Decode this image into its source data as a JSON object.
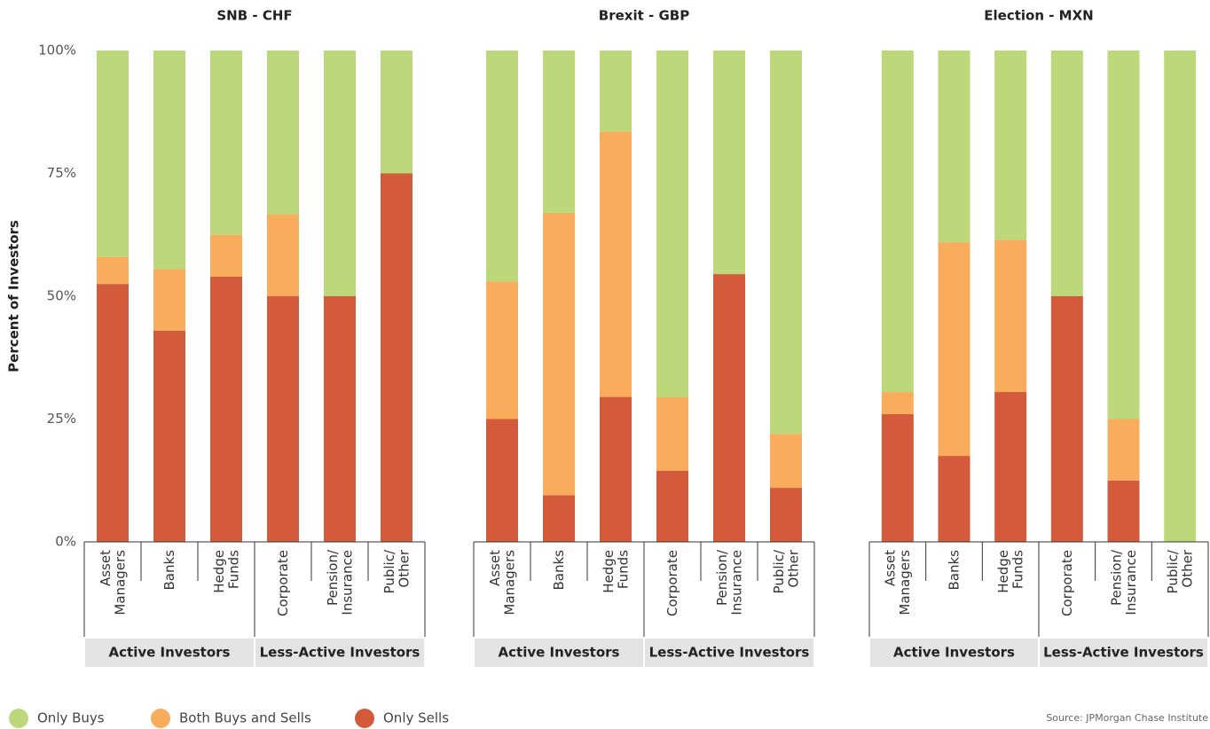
{
  "chart_data": [
    {
      "type": "bar",
      "title": "SNB - CHF",
      "ylabel": "Percent of Investors",
      "categories": [
        "Asset Managers",
        "Banks",
        "Hedge Funds",
        "Corporate",
        "Pension/ Insurance",
        "Public/ Other"
      ],
      "groups": [
        "Active Investors",
        "Less-Active Investors"
      ],
      "series": [
        {
          "name": "Only Buys",
          "color": "#bcd87a",
          "values": [
            42,
            44.5,
            37.5,
            33.3,
            50,
            25
          ]
        },
        {
          "name": "Both Buys and Sells",
          "color": "#f9ad5c",
          "values": [
            5.5,
            12.5,
            8.5,
            16.7,
            0,
            0
          ]
        },
        {
          "name": "Only Sells",
          "color": "#d35a3a",
          "values": [
            52.5,
            43,
            54,
            50,
            50,
            75
          ]
        }
      ],
      "ylim": [
        0,
        100
      ],
      "yticks": [
        {
          "value": 0,
          "label": "0%"
        },
        {
          "value": 25,
          "label": "25%"
        },
        {
          "value": 50,
          "label": "50%"
        },
        {
          "value": 75,
          "label": "75%"
        },
        {
          "value": 100,
          "label": "100%"
        }
      ]
    },
    {
      "type": "bar",
      "title": "Brexit - GBP",
      "categories": [
        "Asset Managers",
        "Banks",
        "Hedge Funds",
        "Corporate",
        "Pension/ Insurance",
        "Public/ Other"
      ],
      "groups": [
        "Active Investors",
        "Less-Active Investors"
      ],
      "series": [
        {
          "name": "Only Buys",
          "color": "#bcd87a",
          "values": [
            47,
            33,
            16.5,
            70.5,
            45.5,
            78
          ]
        },
        {
          "name": "Both Buys and Sells",
          "color": "#f9ad5c",
          "values": [
            28,
            57.5,
            54,
            15,
            0,
            11
          ]
        },
        {
          "name": "Only Sells",
          "color": "#d35a3a",
          "values": [
            25,
            9.5,
            29.5,
            14.5,
            54.5,
            11
          ]
        }
      ],
      "ylim": [
        0,
        100
      ]
    },
    {
      "type": "bar",
      "title": "Election - MXN",
      "categories": [
        "Asset Managers",
        "Banks",
        "Hedge Funds",
        "Corporate",
        "Pension/ Insurance",
        "Public/ Other"
      ],
      "groups": [
        "Active Investors",
        "Less-Active Investors"
      ],
      "series": [
        {
          "name": "Only Buys",
          "color": "#bcd87a",
          "values": [
            69.5,
            39,
            38.5,
            50,
            75,
            100
          ]
        },
        {
          "name": "Both Buys and Sells",
          "color": "#f9ad5c",
          "values": [
            4.5,
            43.5,
            31,
            0,
            12.5,
            0
          ]
        },
        {
          "name": "Only Sells",
          "color": "#d35a3a",
          "values": [
            26,
            17.5,
            30.5,
            50,
            12.5,
            0
          ]
        }
      ],
      "ylim": [
        0,
        100
      ]
    }
  ],
  "source": "Source: JPMorgan Chase Institute"
}
